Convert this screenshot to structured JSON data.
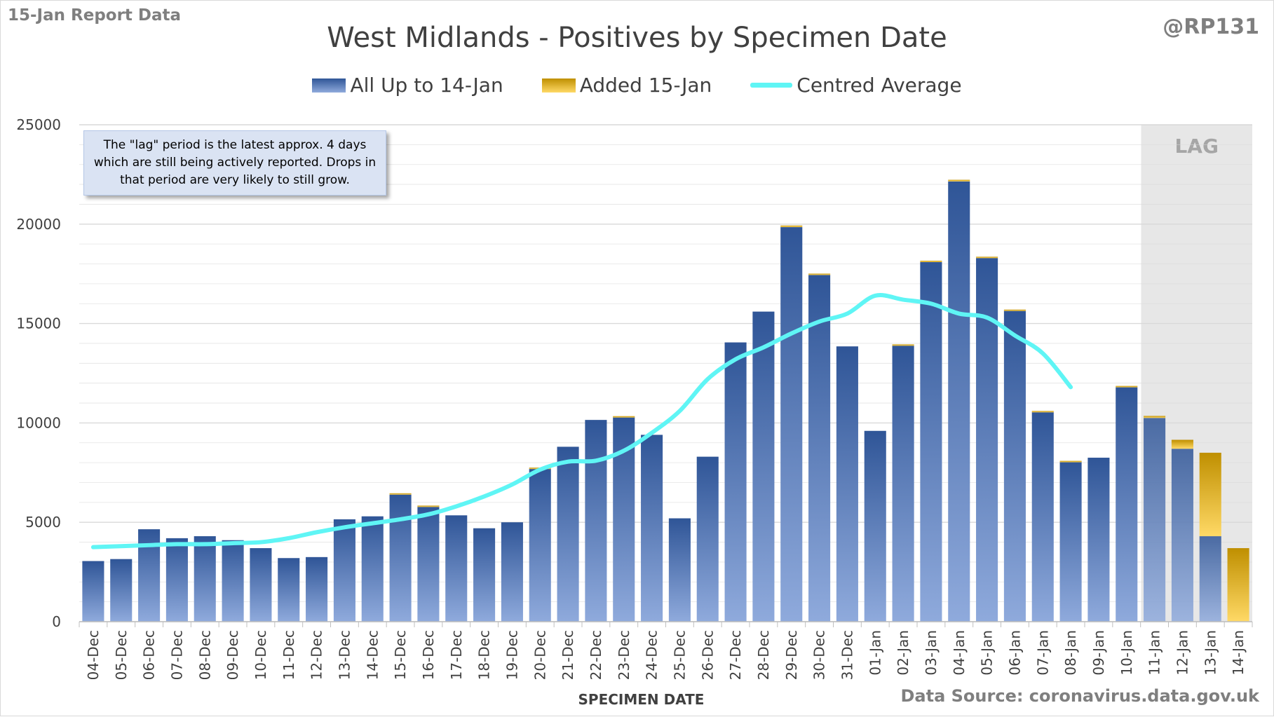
{
  "header": {
    "report_label": "15-Jan Report Data",
    "handle": "@RP131",
    "source": "Data Source: coronavirus.data.gov.uk"
  },
  "note": "The \"lag\" period is the latest approx. 4 days which are still being actively reported. Drops in that period are very likely to still grow.",
  "colors": {
    "bar_dark": "#2f5597",
    "bar_light": "#8faadc",
    "added_dark": "#bf8f00",
    "added_light": "#ffd966",
    "average_line": "#5ff5f5",
    "lag_shade": "#e7e7e7",
    "grid": "#d9d9d9"
  },
  "chart_data": {
    "type": "bar",
    "stacked": true,
    "title": "West Midlands - Positives by Specimen Date",
    "xlabel": "SPECIMEN DATE",
    "ylabel": "",
    "ylim": [
      0,
      25000
    ],
    "yticks": [
      0,
      5000,
      10000,
      15000,
      20000,
      25000
    ],
    "grid": true,
    "legend_position": "top",
    "categories": [
      "04-Dec",
      "05-Dec",
      "06-Dec",
      "07-Dec",
      "08-Dec",
      "09-Dec",
      "10-Dec",
      "11-Dec",
      "12-Dec",
      "13-Dec",
      "14-Dec",
      "15-Dec",
      "16-Dec",
      "17-Dec",
      "18-Dec",
      "19-Dec",
      "20-Dec",
      "21-Dec",
      "22-Dec",
      "23-Dec",
      "24-Dec",
      "25-Dec",
      "26-Dec",
      "27-Dec",
      "28-Dec",
      "29-Dec",
      "30-Dec",
      "31-Dec",
      "01-Jan",
      "02-Jan",
      "03-Jan",
      "04-Jan",
      "05-Jan",
      "06-Jan",
      "07-Jan",
      "08-Jan",
      "09-Jan",
      "10-Jan",
      "11-Jan",
      "12-Jan",
      "13-Jan",
      "14-Jan"
    ],
    "series": [
      {
        "name": "All Up to 14-Jan",
        "kind": "bar",
        "values": [
          3050,
          3150,
          4650,
          4200,
          4300,
          4100,
          3700,
          3200,
          3250,
          5150,
          5300,
          6400,
          5800,
          5350,
          4700,
          5000,
          7700,
          8800,
          10150,
          10300,
          9400,
          5200,
          8300,
          14050,
          15600,
          19850,
          17450,
          13850,
          9600,
          13900,
          18100,
          22150,
          18300,
          15650,
          10550,
          8050,
          8250,
          11800,
          10250,
          8700,
          4300,
          0
        ]
      },
      {
        "name": "Added 15-Jan",
        "kind": "bar",
        "values": [
          0,
          0,
          0,
          0,
          0,
          0,
          0,
          0,
          0,
          0,
          0,
          60,
          40,
          0,
          0,
          0,
          50,
          0,
          0,
          40,
          0,
          0,
          0,
          0,
          0,
          80,
          60,
          0,
          0,
          50,
          60,
          80,
          60,
          50,
          50,
          40,
          0,
          60,
          100,
          450,
          4200,
          3700
        ]
      },
      {
        "name": "Centred Average",
        "kind": "line",
        "values": [
          3750,
          3800,
          3850,
          3900,
          3900,
          3950,
          4000,
          4200,
          4500,
          4750,
          4950,
          5150,
          5400,
          5800,
          6300,
          6900,
          7650,
          8050,
          8100,
          8600,
          9500,
          10600,
          12200,
          13200,
          13800,
          14500,
          15100,
          15500,
          16400,
          16200,
          16000,
          15500,
          15300,
          14400,
          13500,
          11800,
          null,
          null,
          null,
          null,
          null,
          null
        ]
      }
    ],
    "annotations": [
      {
        "text": "LAG",
        "from": "11-Jan",
        "to": "14-Jan"
      }
    ]
  }
}
